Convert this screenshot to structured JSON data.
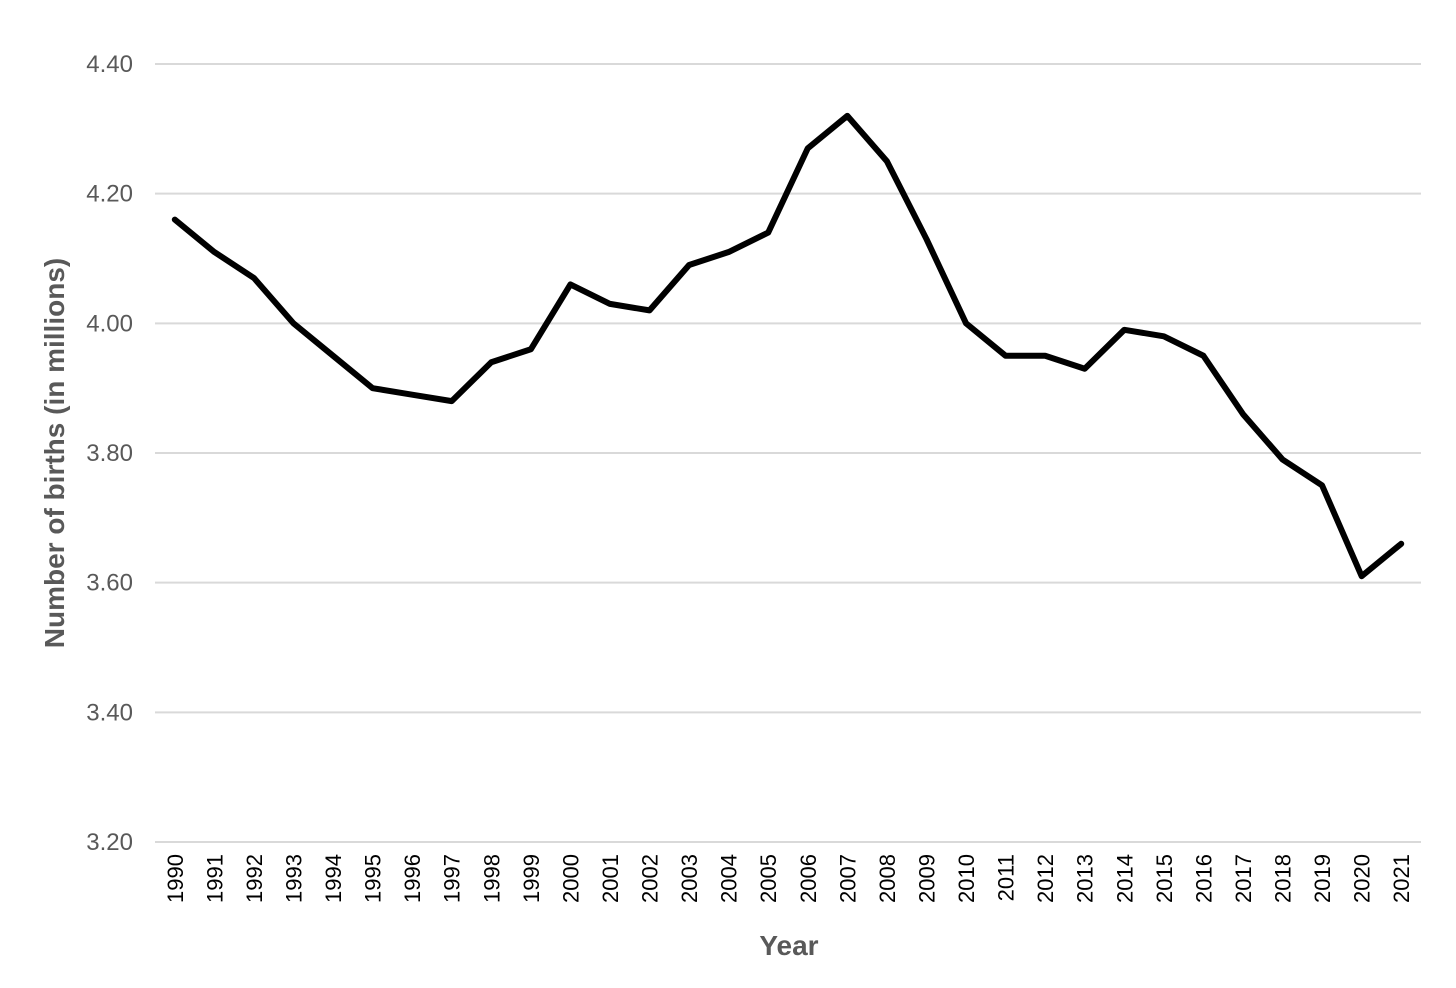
{
  "chart_data": {
    "type": "line",
    "title": "",
    "xlabel": "Year",
    "ylabel": "Number of births (in millions)",
    "ylim": [
      3.2,
      4.4
    ],
    "yticks": [
      "3.20",
      "3.40",
      "3.60",
      "3.80",
      "4.00",
      "4.20",
      "4.40"
    ],
    "grid": true,
    "legend": "none",
    "x": [
      "1990",
      "1991",
      "1992",
      "1993",
      "1994",
      "1995",
      "1996",
      "1997",
      "1998",
      "1999",
      "2000",
      "2001",
      "2002",
      "2003",
      "2004",
      "2005",
      "2006",
      "2007",
      "2008",
      "2009",
      "2010",
      "2011",
      "2012",
      "2013",
      "2014",
      "2015",
      "2016",
      "2017",
      "2018",
      "2019",
      "2020",
      "2021"
    ],
    "series": [
      {
        "color": "#000000",
        "values": [
          4.16,
          4.11,
          4.07,
          4.0,
          3.95,
          3.9,
          3.89,
          3.88,
          3.94,
          3.96,
          4.06,
          4.03,
          4.02,
          4.09,
          4.11,
          4.14,
          4.27,
          4.32,
          4.25,
          4.13,
          4.0,
          3.95,
          3.95,
          3.93,
          3.99,
          3.98,
          3.95,
          3.86,
          3.79,
          3.75,
          3.61,
          3.66
        ]
      }
    ]
  }
}
